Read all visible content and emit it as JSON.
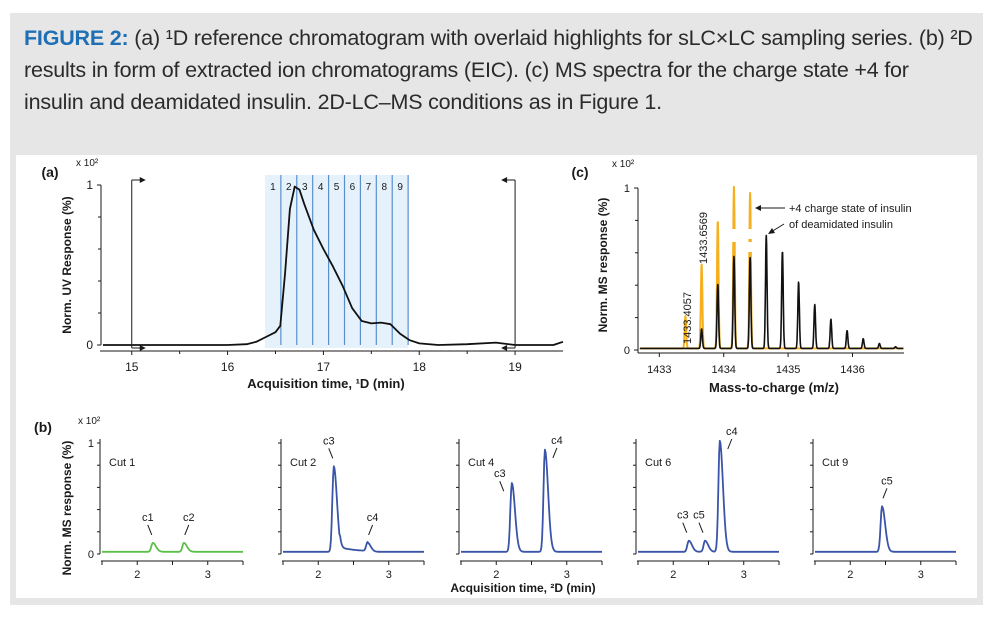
{
  "caption": {
    "figure_label": "FIGURE 2:",
    "text": " (a) ¹D reference chromatogram with overlaid highlights for sLC×LC sampling series. (b) ²D results in form of extracted ion chromatograms (EIC). (c) MS spectra for the charge state +4 for insulin and deamidated insulin. 2D-LC–MS conditions as in Figure 1."
  },
  "colors": {
    "caption_accent": "#1f6fb5",
    "frame_bg": "#e6e6e6",
    "cut_band_fill": "#e6f2fb",
    "cut_band_line": "#5b8fcc",
    "uv_trace": "#111111",
    "insulin_trace": "#f5b020",
    "deamidated_trace": "#111111",
    "cut1_trace": "#5cbf4a",
    "cut_trace": "#3a55a8"
  },
  "chart_data": [
    {
      "id": "a",
      "panel_label": "(a)",
      "type": "line",
      "title": "",
      "scale_label": "x 10²",
      "xlabel": "Acquisition time, ¹D (min)",
      "ylabel": "Norm. UV Response (%)",
      "xlim": [
        14.7,
        19.5
      ],
      "ylim": [
        0,
        1
      ],
      "xticks": [
        15,
        16,
        17,
        18,
        19
      ],
      "xminor": [
        15.5,
        16.5,
        17.5,
        18.5
      ],
      "yticks": [
        0,
        1
      ],
      "yminor": [
        0.2,
        0.4,
        0.6,
        0.8
      ],
      "cut_bands": {
        "labels": [
          "1",
          "2",
          "3",
          "4",
          "5",
          "6",
          "7",
          "8",
          "9"
        ],
        "start": 16.39,
        "width": 0.166
      },
      "markers": [
        {
          "name": "sampling-start",
          "x": 15.0,
          "direction": "right"
        },
        {
          "name": "sampling-end",
          "x": 19.0,
          "direction": "left"
        }
      ],
      "x": [
        14.7,
        15.0,
        15.5,
        16.0,
        16.2,
        16.3,
        16.4,
        16.5,
        16.55,
        16.6,
        16.65,
        16.7,
        16.75,
        16.8,
        16.9,
        17.0,
        17.1,
        17.2,
        17.3,
        17.4,
        17.5,
        17.6,
        17.7,
        17.8,
        17.9,
        18.0,
        18.2,
        18.5,
        18.8,
        19.0,
        19.2,
        19.4,
        19.5
      ],
      "y": [
        0.0,
        0.0,
        0.0,
        0.0,
        0.005,
        0.02,
        0.05,
        0.08,
        0.12,
        0.45,
        0.85,
        0.99,
        0.97,
        0.88,
        0.72,
        0.6,
        0.49,
        0.37,
        0.23,
        0.15,
        0.135,
        0.14,
        0.13,
        0.07,
        0.03,
        0.01,
        0.0,
        0.005,
        0.015,
        0.0,
        0.0,
        0.0,
        0.02
      ]
    },
    {
      "id": "c",
      "panel_label": "(c)",
      "type": "line",
      "scale_label": "x 10²",
      "xlabel": "Mass-to-charge (m/z)",
      "ylabel": "Norm. MS response (%)",
      "xlim": [
        1432.7,
        1436.8
      ],
      "ylim": [
        0,
        1
      ],
      "xticks": [
        1433,
        1434,
        1435,
        1436
      ],
      "yticks": [
        0,
        1
      ],
      "yminor": [
        0.2,
        0.4,
        0.6,
        0.8
      ],
      "series": [
        {
          "name": "+4 charge state of insulin",
          "color_key": "insulin_trace",
          "peaks_mz": [
            1433.4057,
            1433.6569,
            1433.908,
            1434.159,
            1434.41
          ],
          "peaks_height": [
            0.2,
            0.52,
            0.79,
            1.0,
            0.96
          ]
        },
        {
          "name": "of deamidated insulin",
          "color_key": "deamidated_trace",
          "peaks_mz": [
            1433.657,
            1433.908,
            1434.159,
            1434.41,
            1434.661,
            1434.912,
            1435.163,
            1435.414,
            1435.665,
            1435.916,
            1436.167,
            1436.418,
            1436.669
          ],
          "peaks_height": [
            0.12,
            0.4,
            0.57,
            0.56,
            0.7,
            0.6,
            0.41,
            0.27,
            0.18,
            0.11,
            0.06,
            0.03,
            0.01
          ]
        }
      ],
      "peak_labels": [
        "1433.4057",
        "1433.6569"
      ],
      "annotations": [
        "+4 charge state of insulin",
        "of deamidated insulin"
      ]
    },
    {
      "id": "b",
      "panel_label": "(b)",
      "type": "line",
      "scale_label": "x 10²",
      "xlabel": "Acquisition time, ²D (min)",
      "ylabel": "Norm. MS response (%)",
      "xlim": [
        1.5,
        3.5
      ],
      "ylim": [
        0,
        1
      ],
      "xticks": [
        2,
        3
      ],
      "xminor": [
        1.5,
        2.5,
        3.5
      ],
      "yticks": [
        0,
        1
      ],
      "yminor": [
        0.2,
        0.4,
        0.6,
        0.8
      ],
      "subplots": [
        {
          "title": "Cut 1",
          "color_key": "cut1_trace",
          "peaks": [
            {
              "label": "c1",
              "x": 2.22,
              "height": 0.08
            },
            {
              "label": "c2",
              "x": 2.66,
              "height": 0.08
            }
          ]
        },
        {
          "title": "Cut 2",
          "color_key": "cut_trace",
          "peaks": [
            {
              "label": "c3",
              "x": 2.22,
              "height": 0.77
            },
            {
              "label": "c4",
              "x": 2.7,
              "height": 0.08
            }
          ]
        },
        {
          "title": "Cut 4",
          "color_key": "cut_trace",
          "peaks": [
            {
              "label": "c3",
              "x": 2.22,
              "height": 0.62
            },
            {
              "label": "c4",
              "x": 2.69,
              "height": 0.92
            }
          ]
        },
        {
          "title": "Cut 6",
          "color_key": "cut_trace",
          "peaks": [
            {
              "label": "c3",
              "x": 2.22,
              "height": 0.1
            },
            {
              "label": "c5",
              "x": 2.45,
              "height": 0.1
            },
            {
              "label": "c4",
              "x": 2.66,
              "height": 1.0
            }
          ]
        },
        {
          "title": "Cut 9",
          "color_key": "cut_trace",
          "peaks": [
            {
              "label": "c5",
              "x": 2.45,
              "height": 0.41
            }
          ]
        }
      ]
    }
  ]
}
